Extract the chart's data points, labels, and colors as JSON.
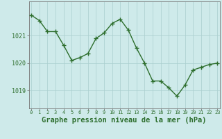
{
  "x": [
    0,
    1,
    2,
    3,
    4,
    5,
    6,
    7,
    8,
    9,
    10,
    11,
    12,
    13,
    14,
    15,
    16,
    17,
    18,
    19,
    20,
    21,
    22,
    23
  ],
  "y": [
    1021.75,
    1021.55,
    1021.15,
    1021.15,
    1020.65,
    1020.1,
    1020.2,
    1020.35,
    1020.9,
    1021.1,
    1021.45,
    1021.6,
    1021.2,
    1020.55,
    1020.0,
    1019.35,
    1019.35,
    1019.1,
    1018.8,
    1019.2,
    1019.75,
    1019.85,
    1019.95,
    1020.0
  ],
  "line_color": "#2d6e2d",
  "marker": "+",
  "marker_color": "#2d6e2d",
  "marker_size": 4,
  "marker_linewidth": 1.0,
  "line_width": 1.0,
  "bg_color": "#ceeaea",
  "grid_color": "#aacece",
  "spine_color": "#777777",
  "tick_color": "#2d6e2d",
  "xlabel": "Graphe pression niveau de la mer (hPa)",
  "xlabel_fontsize": 7.5,
  "ytick_labels": [
    "1019",
    "1020",
    "1021"
  ],
  "ytick_values": [
    1019,
    1020,
    1021
  ],
  "ylim": [
    1018.35,
    1022.25
  ],
  "xlim": [
    -0.3,
    23.3
  ],
  "xtick_fontsize": 5.0,
  "ytick_fontsize": 6.0
}
